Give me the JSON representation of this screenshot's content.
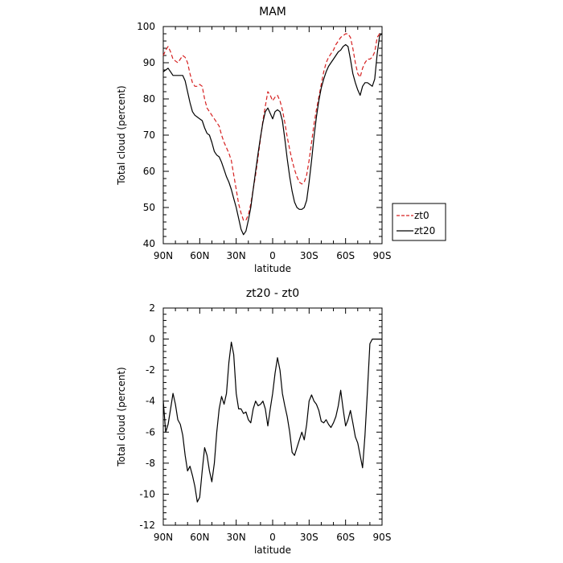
{
  "chart_data": [
    {
      "type": "line",
      "title": "MAM",
      "xlabel": "latitude",
      "ylabel": "Total cloud (percent)",
      "xlim": [
        90,
        -90
      ],
      "ylim": [
        40,
        100
      ],
      "x_ticks": [
        90,
        60,
        30,
        0,
        -30,
        -60,
        -90
      ],
      "x_tick_labels": [
        "90N",
        "60N",
        "30N",
        "0",
        "30S",
        "60S",
        "90S"
      ],
      "y_ticks": [
        40,
        50,
        60,
        70,
        80,
        90,
        100
      ],
      "y_tick_labels": [
        "40",
        "50",
        "60",
        "70",
        "80",
        "90",
        "100"
      ],
      "legend_position": "outside-right",
      "series": [
        {
          "name": "zt0",
          "color": "#d62020",
          "dash": true,
          "x": [
            90,
            88,
            86,
            84,
            82,
            80,
            78,
            76,
            74,
            72,
            70,
            68,
            66,
            64,
            62,
            60,
            58,
            56,
            54,
            52,
            50,
            48,
            46,
            44,
            42,
            40,
            38,
            36,
            34,
            32,
            30,
            28,
            26,
            24,
            22,
            20,
            18,
            16,
            14,
            12,
            10,
            8,
            6,
            4,
            2,
            0,
            -2,
            -4,
            -6,
            -8,
            -10,
            -12,
            -14,
            -16,
            -18,
            -20,
            -22,
            -24,
            -26,
            -28,
            -30,
            -32,
            -34,
            -36,
            -38,
            -40,
            -42,
            -44,
            -46,
            -48,
            -50,
            -52,
            -54,
            -56,
            -58,
            -60,
            -62,
            -64,
            -66,
            -68,
            -70,
            -72,
            -74,
            -76,
            -78,
            -80,
            -82,
            -84,
            -86,
            -88,
            -90
          ],
          "y": [
            92.0,
            93.5,
            94.5,
            93.0,
            91.0,
            90.5,
            90.0,
            91.0,
            92.0,
            91.5,
            90.0,
            87.0,
            84.5,
            83.5,
            83.5,
            84.0,
            83.5,
            80.0,
            77.5,
            76.5,
            75.5,
            74.5,
            73.5,
            72.5,
            70.0,
            68.0,
            66.5,
            65.0,
            63.0,
            59.0,
            55.0,
            51.0,
            48.5,
            46.5,
            46.5,
            48.0,
            51.0,
            55.0,
            59.0,
            64.0,
            69.0,
            74.0,
            78.0,
            82.0,
            81.0,
            79.5,
            80.5,
            81.0,
            79.5,
            77.0,
            73.5,
            69.5,
            66.0,
            63.0,
            60.5,
            58.5,
            57.0,
            56.5,
            57.0,
            59.0,
            63.0,
            68.0,
            73.0,
            77.0,
            80.5,
            84.0,
            87.5,
            90.0,
            91.5,
            92.5,
            93.5,
            95.0,
            96.0,
            97.0,
            97.5,
            98.0,
            98.0,
            97.0,
            94.0,
            90.0,
            87.0,
            86.0,
            88.5,
            90.0,
            91.0,
            91.0,
            91.5,
            93.0,
            97.0,
            98.0,
            98.0
          ]
        },
        {
          "name": "zt20",
          "color": "#000000",
          "dash": false,
          "x": [
            90,
            88,
            86,
            84,
            82,
            80,
            78,
            76,
            74,
            72,
            70,
            68,
            66,
            64,
            62,
            60,
            58,
            56,
            54,
            52,
            50,
            48,
            46,
            44,
            42,
            40,
            38,
            36,
            34,
            32,
            30,
            28,
            26,
            24,
            22,
            20,
            18,
            16,
            14,
            12,
            10,
            8,
            6,
            4,
            2,
            0,
            -2,
            -4,
            -6,
            -8,
            -10,
            -12,
            -14,
            -16,
            -18,
            -20,
            -22,
            -24,
            -26,
            -28,
            -30,
            -32,
            -34,
            -36,
            -38,
            -40,
            -42,
            -44,
            -46,
            -48,
            -50,
            -52,
            -54,
            -56,
            -58,
            -60,
            -62,
            -64,
            -66,
            -68,
            -70,
            -72,
            -74,
            -76,
            -78,
            -80,
            -82,
            -84,
            -86,
            -88,
            -90
          ],
          "y": [
            87.5,
            88.0,
            88.5,
            87.5,
            86.5,
            86.5,
            86.5,
            86.5,
            86.5,
            85.0,
            82.0,
            79.0,
            76.5,
            75.5,
            75.0,
            74.5,
            74.0,
            72.0,
            70.5,
            70.0,
            68.0,
            65.5,
            64.5,
            64.0,
            62.5,
            60.5,
            58.5,
            57.0,
            55.0,
            52.5,
            50.0,
            47.0,
            44.0,
            42.5,
            43.5,
            46.5,
            50.0,
            55.0,
            60.0,
            65.0,
            69.5,
            73.5,
            76.5,
            77.5,
            76.0,
            74.5,
            76.5,
            77.0,
            76.5,
            74.0,
            69.0,
            63.5,
            58.5,
            54.5,
            51.5,
            50.0,
            49.5,
            49.5,
            50.0,
            52.0,
            57.0,
            63.0,
            69.5,
            75.0,
            79.5,
            83.0,
            85.5,
            87.5,
            89.0,
            90.0,
            91.0,
            92.0,
            93.0,
            93.5,
            94.5,
            95.0,
            94.5,
            91.0,
            87.0,
            84.5,
            82.5,
            81.0,
            83.5,
            84.5,
            84.5,
            84.0,
            83.5,
            85.5,
            92.5,
            97.5,
            98.0
          ]
        }
      ]
    },
    {
      "type": "line",
      "title": "zt20 - zt0",
      "xlabel": "latitude",
      "ylabel": "Total cloud (percent)",
      "xlim": [
        90,
        -90
      ],
      "ylim": [
        -12,
        2
      ],
      "x_ticks": [
        90,
        60,
        30,
        0,
        -30,
        -60,
        -90
      ],
      "x_tick_labels": [
        "90N",
        "60N",
        "30N",
        "0",
        "30S",
        "60S",
        "90S"
      ],
      "y_ticks": [
        -12,
        -10,
        -8,
        -6,
        -4,
        -2,
        0,
        2
      ],
      "y_tick_labels": [
        "-12",
        "-10",
        "-8",
        "-6",
        "-4",
        "-2",
        "0",
        "2"
      ],
      "series": [
        {
          "color": "#000000",
          "dash": false,
          "x": [
            90,
            88,
            86,
            84,
            82,
            80,
            78,
            76,
            74,
            72,
            70,
            68,
            66,
            64,
            62,
            60,
            58,
            56,
            54,
            52,
            50,
            48,
            46,
            44,
            42,
            40,
            38,
            36,
            34,
            32,
            30,
            28,
            26,
            24,
            22,
            20,
            18,
            16,
            14,
            12,
            10,
            8,
            6,
            4,
            2,
            0,
            -2,
            -4,
            -6,
            -8,
            -10,
            -12,
            -14,
            -16,
            -18,
            -20,
            -22,
            -24,
            -26,
            -28,
            -30,
            -32,
            -34,
            -36,
            -38,
            -40,
            -42,
            -44,
            -46,
            -48,
            -50,
            -52,
            -54,
            -56,
            -58,
            -60,
            -62,
            -64,
            -66,
            -68,
            -70,
            -72,
            -74,
            -76,
            -78,
            -80,
            -82,
            -84,
            -86,
            -88,
            -90
          ],
          "y": [
            -4.0,
            -6.0,
            -5.5,
            -4.5,
            -3.5,
            -4.2,
            -5.2,
            -5.5,
            -6.2,
            -7.5,
            -8.5,
            -8.2,
            -8.8,
            -9.5,
            -10.5,
            -10.2,
            -8.5,
            -7.0,
            -7.5,
            -8.5,
            -9.2,
            -8.0,
            -6.0,
            -4.5,
            -3.7,
            -4.2,
            -3.5,
            -1.5,
            -0.2,
            -1.0,
            -3.5,
            -4.5,
            -4.5,
            -4.8,
            -4.7,
            -5.2,
            -5.4,
            -4.5,
            -4.0,
            -4.3,
            -4.2,
            -4.0,
            -4.5,
            -5.6,
            -4.5,
            -3.5,
            -2.2,
            -1.2,
            -2.0,
            -3.5,
            -4.3,
            -5.0,
            -6.0,
            -7.3,
            -7.5,
            -7.0,
            -6.5,
            -6.0,
            -6.5,
            -5.5,
            -4.0,
            -3.6,
            -4.0,
            -4.2,
            -4.6,
            -5.3,
            -5.4,
            -5.2,
            -5.5,
            -5.7,
            -5.4,
            -5.0,
            -4.3,
            -3.3,
            -4.5,
            -5.6,
            -5.2,
            -4.6,
            -5.4,
            -6.3,
            -6.7,
            -7.5,
            -8.3,
            -6.2,
            -3.3,
            -0.3,
            0.0,
            0.0,
            0.0,
            0.0,
            0.0
          ]
        }
      ]
    }
  ]
}
